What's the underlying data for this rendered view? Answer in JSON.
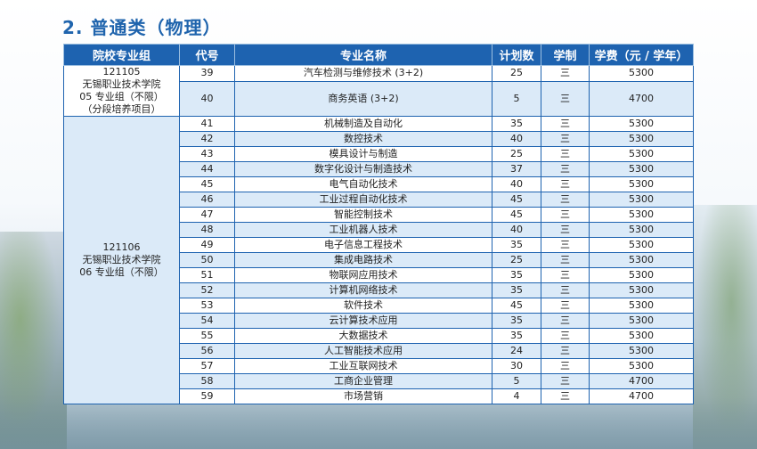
{
  "heading": "2. 普通类（物理）",
  "headers": {
    "group": "院校专业组",
    "code": "代号",
    "major": "专业名称",
    "plan": "计划数",
    "years": "学制",
    "fee": "学费（元 / 学年）"
  },
  "groups": [
    {
      "code": "121105",
      "school": "无锡职业技术学院",
      "unit": "05 专业组（不限）",
      "note": "（分段培养项目）",
      "rows": [
        {
          "code": "39",
          "major": "汽车检测与维修技术 (3+2)",
          "plan": "25",
          "years": "三",
          "fee": "5300"
        },
        {
          "code": "40",
          "major": "商务英语 (3+2)",
          "plan": "5",
          "years": "三",
          "fee": "4700"
        }
      ]
    },
    {
      "code": "121106",
      "school": "无锡职业技术学院",
      "unit": "06 专业组（不限）",
      "rows": [
        {
          "code": "41",
          "major": "机械制造及自动化",
          "plan": "35",
          "years": "三",
          "fee": "5300"
        },
        {
          "code": "42",
          "major": "数控技术",
          "plan": "40",
          "years": "三",
          "fee": "5300"
        },
        {
          "code": "43",
          "major": "模具设计与制造",
          "plan": "25",
          "years": "三",
          "fee": "5300"
        },
        {
          "code": "44",
          "major": "数字化设计与制造技术",
          "plan": "37",
          "years": "三",
          "fee": "5300"
        },
        {
          "code": "45",
          "major": "电气自动化技术",
          "plan": "40",
          "years": "三",
          "fee": "5300"
        },
        {
          "code": "46",
          "major": "工业过程自动化技术",
          "plan": "45",
          "years": "三",
          "fee": "5300"
        },
        {
          "code": "47",
          "major": "智能控制技术",
          "plan": "45",
          "years": "三",
          "fee": "5300"
        },
        {
          "code": "48",
          "major": "工业机器人技术",
          "plan": "40",
          "years": "三",
          "fee": "5300"
        },
        {
          "code": "49",
          "major": "电子信息工程技术",
          "plan": "35",
          "years": "三",
          "fee": "5300"
        },
        {
          "code": "50",
          "major": "集成电路技术",
          "plan": "25",
          "years": "三",
          "fee": "5300"
        },
        {
          "code": "51",
          "major": "物联网应用技术",
          "plan": "35",
          "years": "三",
          "fee": "5300"
        },
        {
          "code": "52",
          "major": "计算机网络技术",
          "plan": "35",
          "years": "三",
          "fee": "5300"
        },
        {
          "code": "53",
          "major": "软件技术",
          "plan": "45",
          "years": "三",
          "fee": "5300"
        },
        {
          "code": "54",
          "major": "云计算技术应用",
          "plan": "35",
          "years": "三",
          "fee": "5300"
        },
        {
          "code": "55",
          "major": "大数据技术",
          "plan": "35",
          "years": "三",
          "fee": "5300"
        },
        {
          "code": "56",
          "major": "人工智能技术应用",
          "plan": "24",
          "years": "三",
          "fee": "5300"
        },
        {
          "code": "57",
          "major": "工业互联网技术",
          "plan": "30",
          "years": "三",
          "fee": "5300"
        },
        {
          "code": "58",
          "major": "工商企业管理",
          "plan": "5",
          "years": "三",
          "fee": "4700"
        },
        {
          "code": "59",
          "major": "市场营销",
          "plan": "4",
          "years": "三",
          "fee": "4700"
        }
      ]
    }
  ]
}
